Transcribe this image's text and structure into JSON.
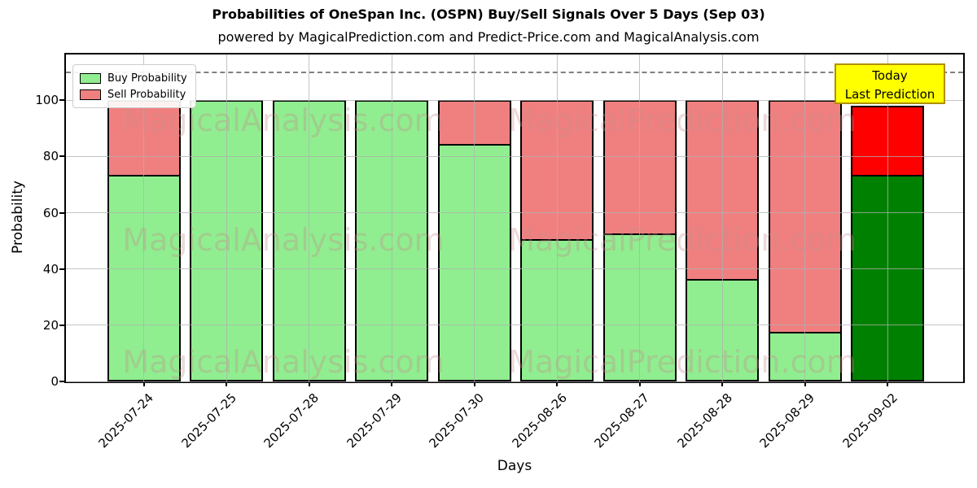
{
  "header": {
    "title": "Probabilities of OneSpan Inc. (OSPN) Buy/Sell Signals Over 5 Days (Sep 03)",
    "subtitle": "powered by MagicalPrediction.com and Predict-Price.com and MagicalAnalysis.com"
  },
  "annotation": {
    "line1": "Today",
    "line2": "Last Prediction"
  },
  "legend": [
    {
      "label": "Buy Probability",
      "color": "#90ee90"
    },
    {
      "label": "Sell Probability",
      "color": "#f08080"
    }
  ],
  "watermarks": {
    "left": "MagicalAnalysis.com",
    "right": "MagicalPrediction.com"
  },
  "colors": {
    "buy": "#90ee90",
    "sell": "#f08080",
    "buy_highlight": "#008000",
    "sell_highlight": "#ff0000",
    "bar_edge": "#000000",
    "grid": "#b0b0b0",
    "dashed_line": "#808080",
    "annotation_bg": "#ffff00",
    "annotation_border": "#b09000"
  },
  "chart_data": {
    "type": "bar",
    "stacked": true,
    "title": "Probabilities of OneSpan Inc. (OSPN) Buy/Sell Signals Over 5 Days (Sep 03)",
    "xlabel": "Days",
    "ylabel": "Probability",
    "categories": [
      "2025-07-24",
      "2025-07-25",
      "2025-07-28",
      "2025-07-29",
      "2025-07-30",
      "2025-08-26",
      "2025-08-27",
      "2025-08-28",
      "2025-08-29",
      "2025-09-02"
    ],
    "series": [
      {
        "name": "Buy Probability",
        "values": [
          73,
          100,
          100,
          100,
          84,
          50,
          52,
          36,
          17,
          73
        ]
      },
      {
        "name": "Sell Probability",
        "values": [
          27,
          0,
          0,
          0,
          16,
          50,
          48,
          64,
          83,
          25
        ]
      }
    ],
    "yticks": [
      0,
      20,
      40,
      60,
      80,
      100
    ],
    "ylim": [
      0,
      116
    ],
    "dashed_line_y": 110,
    "grid": true,
    "grid_above_bars": true,
    "legend_position": "upper left",
    "highlight_index": 9,
    "highlight_label": "Today\nLast Prediction"
  }
}
